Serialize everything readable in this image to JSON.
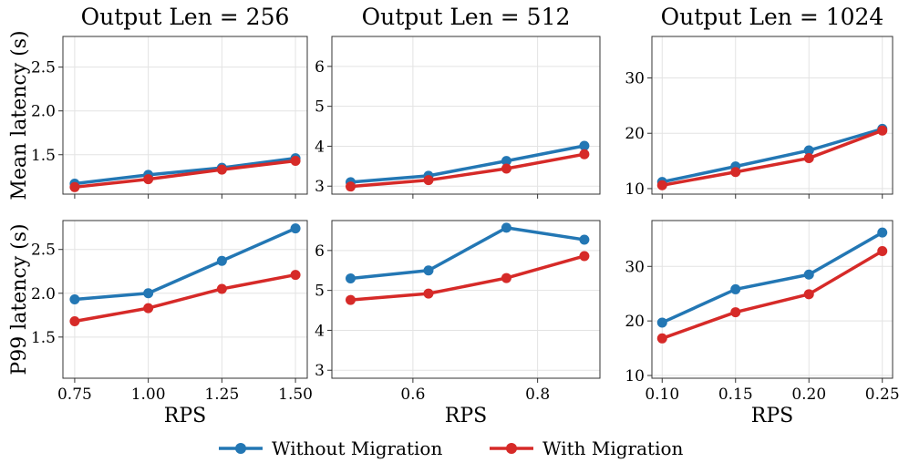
{
  "legend": {
    "items": [
      {
        "label": "Without Migration",
        "color": "#2377b4"
      },
      {
        "label": "With Migration",
        "color": "#d62a28"
      }
    ]
  },
  "chart_data": [
    {
      "type": "line",
      "title": "Output Len = 256",
      "xlabel": "",
      "ylabel": "Mean latency (s)",
      "xlim": [
        0.71,
        1.54
      ],
      "ylim": [
        1.05,
        2.85
      ],
      "xticks": [
        0.75,
        1.0,
        1.25,
        1.5
      ],
      "xtick_labels": [],
      "yticks": [
        1.5,
        2.0,
        2.5
      ],
      "ytick_labels": [
        "1.5",
        "2.0",
        "2.5"
      ],
      "grid": true,
      "x": [
        0.75,
        1.0,
        1.25,
        1.5
      ],
      "series": [
        {
          "name": "Without Migration",
          "values": [
            1.17,
            1.27,
            1.35,
            1.46
          ]
        },
        {
          "name": "With Migration",
          "values": [
            1.13,
            1.22,
            1.33,
            1.43
          ]
        }
      ]
    },
    {
      "type": "line",
      "title": "Output Len = 512",
      "xlabel": "",
      "ylabel": "",
      "xlim": [
        0.47,
        0.9
      ],
      "ylim": [
        2.8,
        6.75
      ],
      "xticks": [
        0.6,
        0.8
      ],
      "xtick_labels": [],
      "yticks": [
        3,
        4,
        5,
        6
      ],
      "ytick_labels": [
        "3",
        "4",
        "5",
        "6"
      ],
      "grid": true,
      "x": [
        0.5,
        0.625,
        0.75,
        0.875
      ],
      "series": [
        {
          "name": "Without Migration",
          "values": [
            3.1,
            3.26,
            3.63,
            4.01
          ]
        },
        {
          "name": "With Migration",
          "values": [
            2.99,
            3.15,
            3.44,
            3.8
          ]
        }
      ]
    },
    {
      "type": "line",
      "title": "Output Len = 1024",
      "xlabel": "",
      "ylabel": "",
      "xlim": [
        0.093,
        0.257
      ],
      "ylim": [
        9.0,
        37.5
      ],
      "xticks": [
        0.1,
        0.15,
        0.2,
        0.25
      ],
      "xtick_labels": [],
      "yticks": [
        10,
        20,
        30
      ],
      "ytick_labels": [
        "10",
        "20",
        "30"
      ],
      "grid": true,
      "x": [
        0.1,
        0.15,
        0.2,
        0.25
      ],
      "series": [
        {
          "name": "Without Migration",
          "values": [
            11.2,
            14.0,
            16.9,
            20.8
          ]
        },
        {
          "name": "With Migration",
          "values": [
            10.6,
            13.0,
            15.5,
            20.5
          ]
        }
      ]
    },
    {
      "type": "line",
      "title": "",
      "xlabel": "RPS",
      "ylabel": "P99 latency (s)",
      "xlim": [
        0.71,
        1.54
      ],
      "ylim": [
        1.03,
        2.83
      ],
      "xticks": [
        0.75,
        1.0,
        1.25,
        1.5
      ],
      "xtick_labels": [
        "0.75",
        "1.00",
        "1.25",
        "1.50"
      ],
      "yticks": [
        1.5,
        2.0,
        2.5
      ],
      "ytick_labels": [
        "1.5",
        "2.0",
        "2.5"
      ],
      "grid": true,
      "x": [
        0.75,
        1.0,
        1.25,
        1.5
      ],
      "series": [
        {
          "name": "Without Migration",
          "values": [
            1.93,
            2.0,
            2.37,
            2.74
          ]
        },
        {
          "name": "With Migration",
          "values": [
            1.68,
            1.83,
            2.05,
            2.21
          ]
        }
      ]
    },
    {
      "type": "line",
      "title": "",
      "xlabel": "RPS",
      "ylabel": "",
      "xlim": [
        0.47,
        0.9
      ],
      "ylim": [
        2.8,
        6.75
      ],
      "xticks": [
        0.6,
        0.8
      ],
      "xtick_labels": [
        "0.6",
        "0.8"
      ],
      "yticks": [
        3,
        4,
        5,
        6
      ],
      "ytick_labels": [
        "3",
        "4",
        "5",
        "6"
      ],
      "grid": true,
      "x": [
        0.5,
        0.625,
        0.75,
        0.875
      ],
      "series": [
        {
          "name": "Without Migration",
          "values": [
            5.3,
            5.5,
            6.57,
            6.27
          ]
        },
        {
          "name": "With Migration",
          "values": [
            4.76,
            4.92,
            5.31,
            5.86
          ]
        }
      ]
    },
    {
      "type": "line",
      "title": "",
      "xlabel": "RPS",
      "ylabel": "",
      "xlim": [
        0.093,
        0.257
      ],
      "ylim": [
        9.5,
        38.4
      ],
      "xticks": [
        0.1,
        0.15,
        0.2,
        0.25
      ],
      "xtick_labels": [
        "0.10",
        "0.15",
        "0.20",
        "0.25"
      ],
      "yticks": [
        10,
        20,
        30
      ],
      "ytick_labels": [
        "10",
        "20",
        "30"
      ],
      "grid": true,
      "x": [
        0.1,
        0.15,
        0.2,
        0.25
      ],
      "series": [
        {
          "name": "Without Migration",
          "values": [
            19.7,
            25.8,
            28.5,
            36.2
          ]
        },
        {
          "name": "With Migration",
          "values": [
            16.8,
            21.6,
            24.9,
            32.8
          ]
        }
      ]
    }
  ]
}
